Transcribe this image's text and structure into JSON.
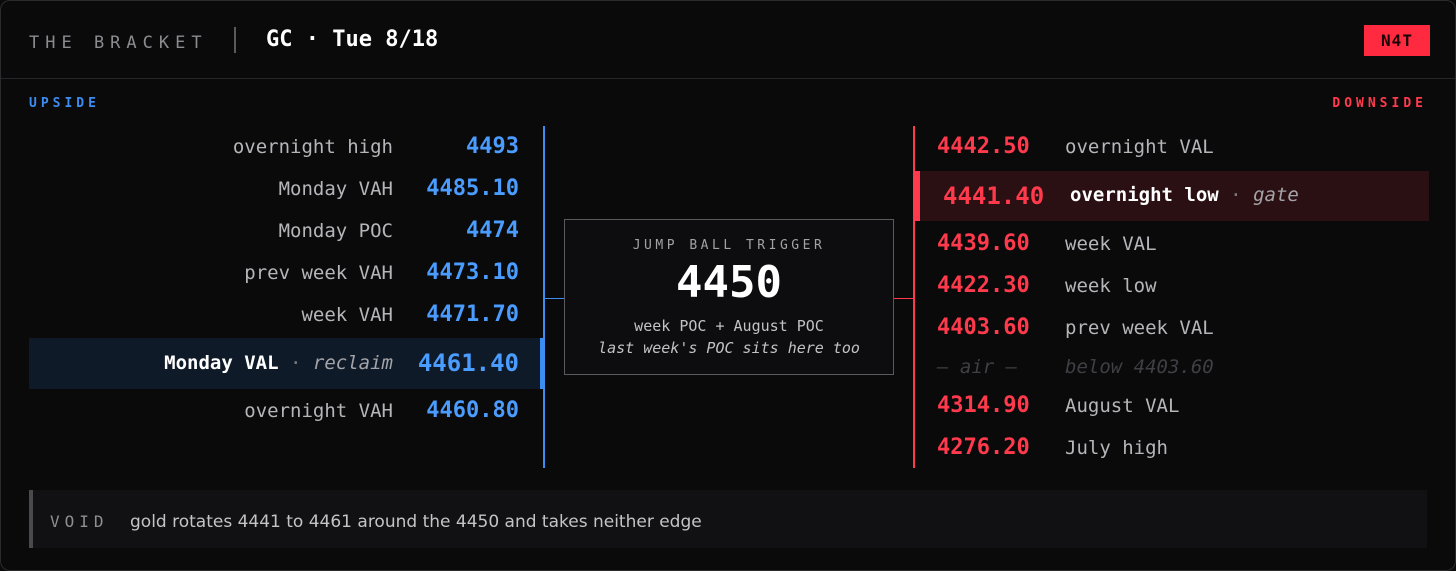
{
  "header": {
    "brand": "THE BRACKET",
    "title": "GC · Tue 8/18",
    "badge": "N4T"
  },
  "colors": {
    "upside": "#3d8cf0",
    "downside": "#ff3a4c",
    "badge": "#ff2a3f"
  },
  "upside": {
    "label": "UPSIDE",
    "rows": [
      {
        "label": "overnight high",
        "value": "4493"
      },
      {
        "label": "Monday VAH",
        "value": "4485.10"
      },
      {
        "label": "Monday POC",
        "value": "4474"
      },
      {
        "label": "prev week VAH",
        "value": "4473.10"
      },
      {
        "label": "week VAH",
        "value": "4471.70"
      },
      {
        "label": "Monday VAL",
        "sep": "·",
        "note": "reclaim",
        "value": "4461.40",
        "highlight": true
      },
      {
        "label": "overnight VAH",
        "value": "4460.80"
      }
    ]
  },
  "trigger": {
    "label": "JUMP BALL TRIGGER",
    "value": "4450",
    "description": "week POC + August POC",
    "note": "last week's POC sits here too"
  },
  "downside": {
    "label": "DOWNSIDE",
    "rows": [
      {
        "value": "4442.50",
        "label": "overnight VAL"
      },
      {
        "value": "4441.40",
        "label": "overnight low",
        "sep": "·",
        "note": "gate",
        "highlight": true
      },
      {
        "value": "4439.60",
        "label": "week VAL"
      },
      {
        "value": "4422.30",
        "label": "week low"
      },
      {
        "value": "4403.60",
        "label": "prev week VAL"
      },
      {
        "value": "— air —",
        "label": "below 4403.60",
        "muted": true
      },
      {
        "value": "4314.90",
        "label": "August VAL"
      },
      {
        "value": "4276.20",
        "label": "July high"
      }
    ]
  },
  "void": {
    "tag": "VOID",
    "text": "gold rotates 4441 to 4461 around the 4450 and takes neither edge"
  }
}
